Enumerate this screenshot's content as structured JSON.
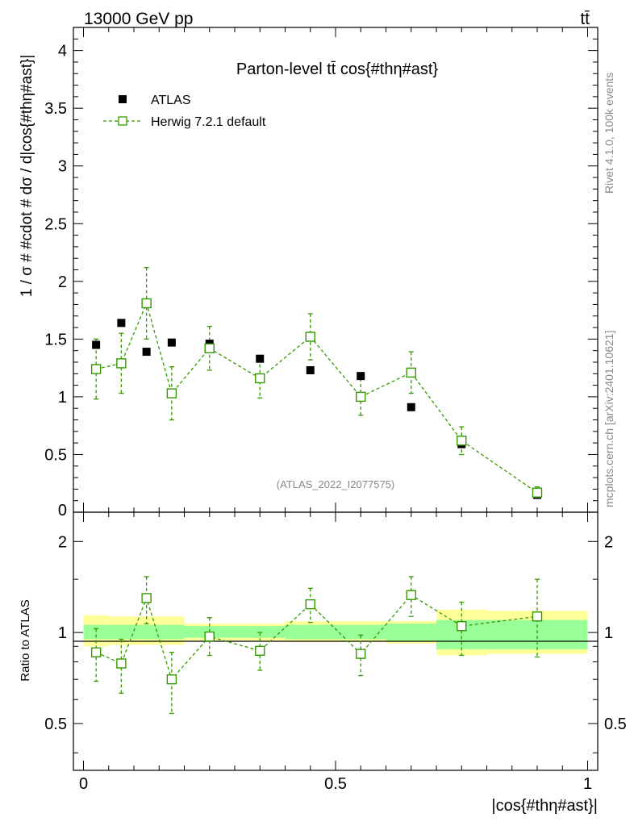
{
  "header": {
    "energy": "13000 GeV pp",
    "process": "tt̄"
  },
  "side": {
    "rivet": "Rivet 4.1.0,  100k events",
    "mcplots": "mcplots.cern.ch [arXiv:2401.10621]"
  },
  "chart_data": [
    {
      "type": "scatter",
      "title": "Parton-level tt̄ cos{#thη#ast}",
      "ylabel": "1 / σ # #cdot # dσ / d|cos{#thη#ast}|",
      "xlabel": "",
      "xlim": [
        -0.02,
        1.02
      ],
      "ylim": [
        0,
        4.2
      ],
      "yticks": [
        0.5,
        1,
        1.5,
        2,
        2.5,
        3,
        3.5,
        4
      ],
      "ytick_labels": [
        "0.5",
        "1",
        "1.5",
        "2",
        "2.5",
        "3",
        "3.5",
        "4"
      ],
      "cut_label": "0",
      "watermark": "(ATLAS_2022_I2077575)",
      "legend_position": "top-left",
      "series": [
        {
          "name": "ATLAS",
          "color": "#000000",
          "marker": "filled-square",
          "x": [
            0.025,
            0.075,
            0.125,
            0.175,
            0.25,
            0.35,
            0.45,
            0.55,
            0.65,
            0.75,
            0.9
          ],
          "y": [
            1.45,
            1.64,
            1.39,
            1.47,
            1.46,
            1.33,
            1.23,
            1.18,
            0.91,
            0.59,
            0.15
          ]
        },
        {
          "name": "Herwig 7.2.1 default",
          "color": "#339900",
          "marker": "open-square",
          "line": "dashed",
          "x": [
            0.025,
            0.075,
            0.125,
            0.175,
            0.25,
            0.35,
            0.45,
            0.55,
            0.65,
            0.75,
            0.9
          ],
          "y": [
            1.24,
            1.29,
            1.81,
            1.03,
            1.42,
            1.16,
            1.52,
            1.0,
            1.21,
            0.62,
            0.17
          ],
          "err": [
            0.26,
            0.26,
            0.31,
            0.23,
            0.19,
            0.17,
            0.2,
            0.16,
            0.18,
            0.12,
            0.05
          ]
        }
      ]
    },
    {
      "type": "scatter",
      "ylabel": "Ratio to ATLAS",
      "xlabel": "|cos{#thη#ast}|",
      "xlim": [
        -0.02,
        1.02
      ],
      "ylim": [
        0.35,
        2.5
      ],
      "yscale": "log",
      "yticks": [
        0.5,
        1,
        2
      ],
      "ytick_labels": [
        "0.5",
        "1",
        "2"
      ],
      "xticks": [
        0,
        0.5,
        1
      ],
      "xtick_labels": [
        "0",
        "0.5",
        "1"
      ],
      "bands": {
        "edges": [
          0,
          0.05,
          0.1,
          0.15,
          0.2,
          0.3,
          0.4,
          0.5,
          0.6,
          0.7,
          0.8,
          1.0
        ],
        "inner_lo": [
          0.95,
          0.95,
          0.95,
          0.95,
          0.96,
          0.96,
          0.95,
          0.95,
          0.94,
          0.88,
          0.88
        ],
        "inner_hi": [
          1.06,
          1.06,
          1.06,
          1.06,
          1.05,
          1.05,
          1.06,
          1.06,
          1.07,
          1.1,
          1.1
        ],
        "outer_lo": [
          0.9,
          0.91,
          0.91,
          0.91,
          0.94,
          0.94,
          0.93,
          0.93,
          0.92,
          0.84,
          0.85
        ],
        "outer_hi": [
          1.14,
          1.13,
          1.13,
          1.13,
          1.07,
          1.07,
          1.09,
          1.09,
          1.09,
          1.19,
          1.18
        ],
        "inner_color": "#99ff99",
        "outer_color": "#ffff99"
      },
      "series": [
        {
          "name": "Herwig 7.2.1 default",
          "color": "#339900",
          "marker": "open-square",
          "line": "dashed",
          "x": [
            0.025,
            0.075,
            0.125,
            0.175,
            0.25,
            0.35,
            0.45,
            0.55,
            0.65,
            0.75,
            0.9
          ],
          "y": [
            0.86,
            0.79,
            1.3,
            0.7,
            0.97,
            0.87,
            1.24,
            0.85,
            1.33,
            1.05,
            1.13
          ],
          "lo": [
            0.69,
            0.63,
            1.07,
            0.54,
            0.84,
            0.75,
            1.08,
            0.72,
            1.13,
            0.84,
            0.83
          ],
          "hi": [
            1.03,
            0.95,
            1.53,
            0.86,
            1.12,
            1.0,
            1.4,
            0.98,
            1.53,
            1.26,
            1.5
          ]
        }
      ]
    }
  ]
}
